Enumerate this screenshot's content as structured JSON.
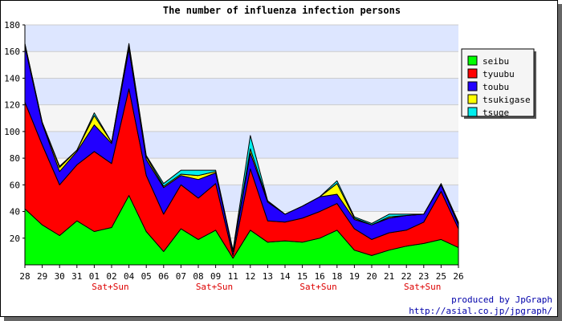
{
  "chart_data": {
    "type": "area",
    "stacked": true,
    "title": "The number of influenza infection persons",
    "xlabel": "",
    "ylabel": "",
    "ylim": [
      0,
      180
    ],
    "yticks": [
      20,
      40,
      60,
      80,
      100,
      120,
      140,
      160,
      180
    ],
    "grid": true,
    "legend_position": "right",
    "categories": [
      "28",
      "29",
      "30",
      "31",
      "01",
      "02",
      "04",
      "05",
      "06",
      "07",
      "08",
      "09",
      "11",
      "12",
      "13",
      "14",
      "15",
      "16",
      "18",
      "19",
      "20",
      "21",
      "22",
      "23",
      "25",
      "26"
    ],
    "weekend_markers": [
      {
        "category": "01",
        "label": "Sat+Sun"
      },
      {
        "category": "08",
        "label": "Sat+Sun"
      },
      {
        "category": "15",
        "label": "Sat+Sun"
      },
      {
        "category": "22",
        "label": "Sat+Sun"
      }
    ],
    "series": [
      {
        "name": "seibu",
        "color": "#00ff00",
        "values": [
          42,
          30,
          22,
          33,
          25,
          28,
          52,
          25,
          10,
          27,
          19,
          26,
          5,
          26,
          17,
          18,
          17,
          20,
          26,
          11,
          7,
          11,
          14,
          16,
          19,
          13
        ]
      },
      {
        "name": "tyuubu",
        "color": "#ff0000",
        "values": [
          80,
          60,
          38,
          42,
          60,
          48,
          80,
          42,
          28,
          33,
          31,
          35,
          2,
          46,
          16,
          14,
          18,
          20,
          20,
          16,
          12,
          13,
          12,
          16,
          36,
          14
        ]
      },
      {
        "name": "toubu",
        "color": "#2200ff",
        "values": [
          42,
          16,
          10,
          10,
          20,
          15,
          30,
          12,
          20,
          7,
          14,
          8,
          3,
          12,
          14,
          6,
          9,
          11,
          7,
          7,
          11,
          11,
          11,
          6,
          5,
          3
        ]
      },
      {
        "name": "tsukigase",
        "color": "#ffff00",
        "values": [
          2,
          1,
          3,
          1,
          7,
          1,
          3,
          2,
          1,
          1,
          3,
          1,
          0,
          3,
          1,
          0,
          0,
          0,
          8,
          1,
          0,
          1,
          0,
          0,
          0,
          1
        ]
      },
      {
        "name": "tsuge",
        "color": "#00eeee",
        "values": [
          0,
          0,
          1,
          0,
          2,
          0,
          1,
          1,
          2,
          3,
          4,
          1,
          1,
          10,
          0,
          0,
          0,
          0,
          2,
          1,
          1,
          2,
          1,
          0,
          1,
          1
        ]
      }
    ]
  },
  "credits": {
    "line1": "produced by JpGraph",
    "line2": "http://asial.co.jp/jpgraph/"
  }
}
